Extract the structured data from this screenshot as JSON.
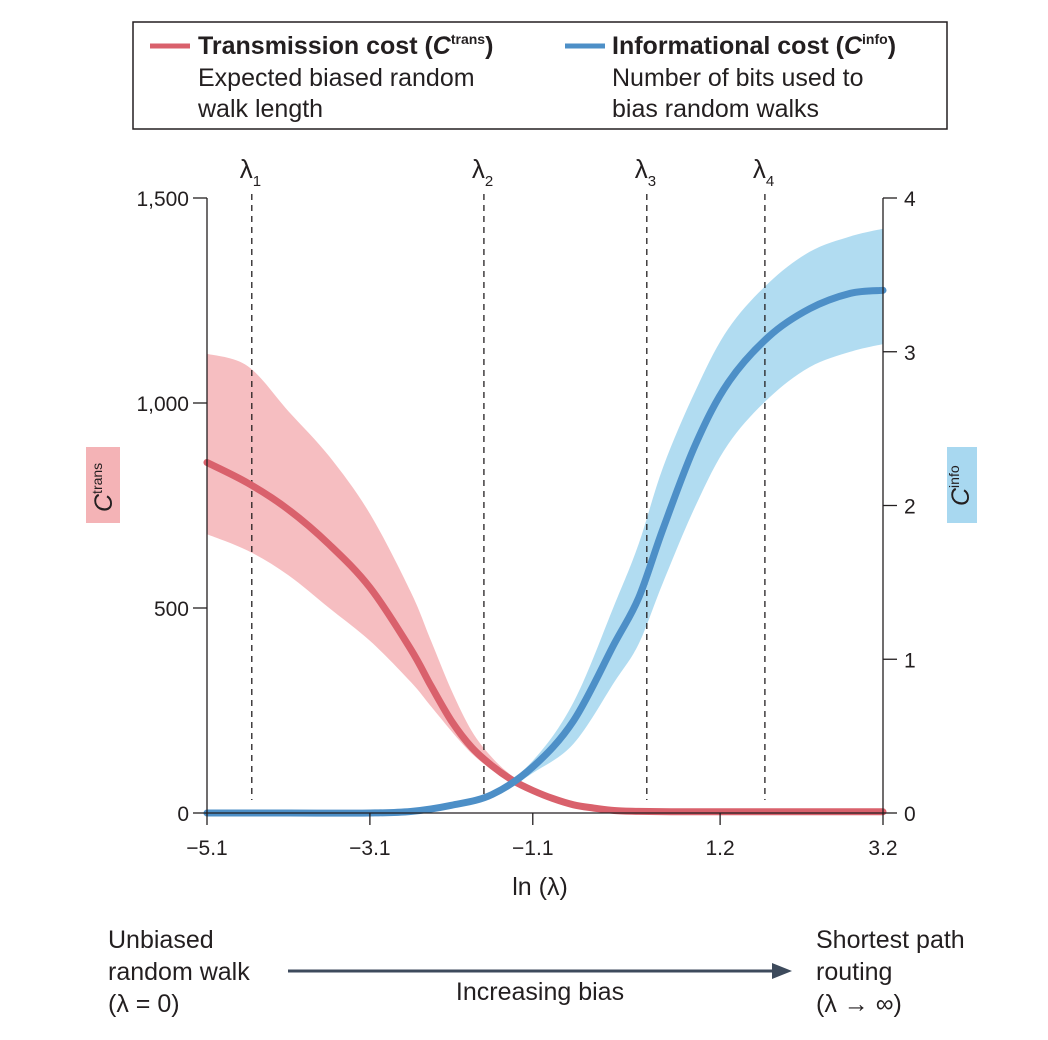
{
  "chart_data": {
    "type": "line",
    "xlabel": "ln (λ)",
    "x_ticks": [
      "−5.1",
      "−3.1",
      "−1.1",
      "1.2",
      "3.2"
    ],
    "x_tick_values": [
      -5.1,
      -3.1,
      -1.1,
      1.2,
      3.2
    ],
    "xlim": [
      -5.1,
      3.2
    ],
    "y_left": {
      "label": "C",
      "label_sup": "trans",
      "ylim": [
        0,
        1500
      ],
      "ticks": [
        "0",
        "500",
        "1,000",
        "1,500"
      ],
      "tick_values": [
        0,
        500,
        1000,
        1500
      ]
    },
    "y_right": {
      "label": "C",
      "label_sup": "info",
      "ylim": [
        0,
        4
      ],
      "ticks": [
        "0",
        "1",
        "2",
        "3",
        "4"
      ],
      "tick_values": [
        0,
        1,
        2,
        3,
        4
      ]
    },
    "lambda_lines": [
      {
        "label": "λ",
        "sub": "1",
        "x": -4.55
      },
      {
        "label": "λ",
        "sub": "2",
        "x": -1.7
      },
      {
        "label": "λ",
        "sub": "3",
        "x": 0.3
      },
      {
        "label": "λ",
        "sub": "4",
        "x": 1.75
      }
    ],
    "series": [
      {
        "name": "Transmission cost",
        "axis": "left",
        "color": "#d9616c",
        "band_color": "#f4b3b6",
        "x": [
          -5.1,
          -4.6,
          -4.1,
          -3.6,
          -3.1,
          -2.6,
          -2.35,
          -2.1,
          -1.85,
          -1.6,
          -1.35,
          -1.1,
          -0.85,
          -0.6,
          -0.35,
          -0.1,
          0.2,
          0.6,
          1.2,
          2.2,
          3.2
        ],
        "y": [
          855,
          805,
          740,
          655,
          550,
          400,
          310,
          225,
          160,
          115,
          80,
          55,
          35,
          20,
          12,
          6,
          4,
          3,
          3,
          3,
          3
        ],
        "low": [
          680,
          640,
          580,
          500,
          420,
          320,
          260,
          200,
          145,
          105,
          75,
          52,
          34,
          19,
          11,
          6,
          4,
          3,
          3,
          3,
          3
        ],
        "high": [
          1120,
          1090,
          980,
          870,
          730,
          540,
          420,
          300,
          200,
          135,
          90,
          60,
          38,
          22,
          13,
          7,
          4,
          3,
          3,
          3,
          3
        ]
      },
      {
        "name": "Informational cost",
        "axis": "right",
        "color": "#4d8fc7",
        "band_color": "#a8d8f0",
        "x": [
          -5.1,
          -4.1,
          -3.1,
          -2.6,
          -2.1,
          -1.6,
          -1.1,
          -0.6,
          -0.1,
          0.2,
          0.5,
          0.9,
          1.3,
          1.8,
          2.3,
          2.8,
          3.2
        ],
        "y": [
          0,
          0,
          0,
          0.01,
          0.05,
          0.12,
          0.3,
          0.6,
          1.1,
          1.4,
          1.85,
          2.4,
          2.8,
          3.1,
          3.28,
          3.38,
          3.4
        ],
        "low": [
          0,
          0,
          0,
          0.01,
          0.04,
          0.1,
          0.26,
          0.45,
          0.85,
          1.1,
          1.5,
          2.0,
          2.4,
          2.7,
          2.9,
          3.0,
          3.05
        ],
        "high": [
          0,
          0,
          0,
          0.01,
          0.06,
          0.14,
          0.34,
          0.72,
          1.35,
          1.75,
          2.25,
          2.75,
          3.15,
          3.45,
          3.65,
          3.75,
          3.8
        ]
      }
    ]
  },
  "legend": {
    "trans_title": "Transmission cost (",
    "trans_title_c": "C",
    "trans_title_sup": "trans",
    "trans_title_end": ")",
    "trans_desc_1": "Expected biased random",
    "trans_desc_2": "walk length",
    "info_title": "Informational cost (",
    "info_title_c": "C",
    "info_title_sup": "info",
    "info_title_end": ")",
    "info_desc_1": "Number of bits used to",
    "info_desc_2": "bias random walks"
  },
  "bottom": {
    "left_1": "Unbiased",
    "left_2": "random walk",
    "left_3": "(λ = 0)",
    "middle": "Increasing bias",
    "right_1": "Shortest path",
    "right_2": "routing",
    "right_3": "(λ → ∞)"
  },
  "colors": {
    "arrow": "#3d4a5c",
    "axis": "#231f20"
  }
}
